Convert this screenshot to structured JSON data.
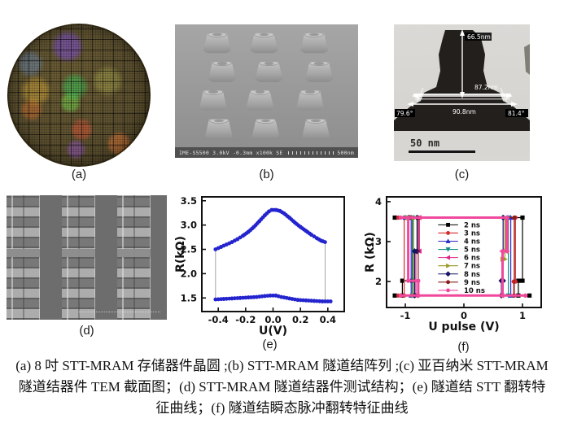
{
  "figure": {
    "panel_labels": {
      "a": "(a)",
      "b": "(b)",
      "c": "(c)",
      "d": "(d)",
      "e": "(e)",
      "f": "(f)"
    },
    "panel_b": {
      "status_text": "IME-S5500 3.0kV -0.3mm x100k SE",
      "scale_text": "500nm",
      "pillar_rows": 4,
      "pillar_cols": 3
    },
    "panel_c": {
      "height_label": "66.5nm",
      "width_label_top": "87.2nm",
      "width_label_bottom": "90.8nm",
      "angle_left": "79.6°",
      "angle_right": "81.4°",
      "scale_bar": "50 nm"
    }
  },
  "caption": {
    "lines": [
      "(a) 8 吋 STT-MRAM 存储器件晶圆 ;(b) STT-MRAM 隧道结阵列 ;(c) 亚百纳米 STT-MRAM",
      "隧道结器件 TEM 截面图；(d) STT-MRAM 隧道结器件测试结构；(e) 隧道结 STT 翻转特",
      "征曲线；(f) 隧道结瞬态脉冲翻转特征曲线"
    ]
  },
  "chart_data": [
    {
      "type": "scatter",
      "title": "",
      "xlabel": "U(V)",
      "ylabel": "R(kΩ)",
      "xlim": [
        -0.52,
        0.52
      ],
      "ylim": [
        1.22,
        3.58
      ],
      "xticks": [
        {
          "v": -0.4,
          "t": "-0.4"
        },
        {
          "v": -0.2,
          "t": "-0.2"
        },
        {
          "v": 0.0,
          "t": "0.0"
        },
        {
          "v": 0.2,
          "t": "0.2"
        },
        {
          "v": 0.4,
          "t": "0.4"
        }
      ],
      "yticks": [
        {
          "v": 1.5,
          "t": "1.5"
        },
        {
          "v": 2.0,
          "t": "2.0"
        },
        {
          "v": 2.5,
          "t": "2.5"
        },
        {
          "v": 3.0,
          "t": "3.0"
        },
        {
          "v": 3.5,
          "t": "3.5"
        }
      ],
      "dot_color": "#2424cf",
      "dot_radius": 2.4,
      "series": [
        {
          "name": "upper-branch",
          "points": [
            [
              -0.42,
              2.5
            ],
            [
              -0.38,
              2.55
            ],
            [
              -0.34,
              2.6
            ],
            [
              -0.3,
              2.65
            ],
            [
              -0.26,
              2.71
            ],
            [
              -0.22,
              2.78
            ],
            [
              -0.18,
              2.86
            ],
            [
              -0.14,
              2.96
            ],
            [
              -0.1,
              3.08
            ],
            [
              -0.06,
              3.2
            ],
            [
              -0.03,
              3.28
            ],
            [
              -0.01,
              3.31
            ],
            [
              0.02,
              3.31
            ],
            [
              0.05,
              3.29
            ],
            [
              0.08,
              3.24
            ],
            [
              0.12,
              3.15
            ],
            [
              0.16,
              3.05
            ],
            [
              0.2,
              2.96
            ],
            [
              0.24,
              2.88
            ],
            [
              0.28,
              2.8
            ],
            [
              0.32,
              2.73
            ],
            [
              0.35,
              2.68
            ],
            [
              0.38,
              2.65
            ]
          ]
        },
        {
          "name": "lower-branch",
          "points": [
            [
              -0.42,
              1.47
            ],
            [
              -0.36,
              1.48
            ],
            [
              -0.3,
              1.49
            ],
            [
              -0.24,
              1.5
            ],
            [
              -0.18,
              1.51
            ],
            [
              -0.12,
              1.52
            ],
            [
              -0.06,
              1.54
            ],
            [
              -0.02,
              1.55
            ],
            [
              0.02,
              1.55
            ],
            [
              0.06,
              1.52
            ],
            [
              0.12,
              1.49
            ],
            [
              0.18,
              1.46
            ],
            [
              0.24,
              1.45
            ],
            [
              0.3,
              1.44
            ],
            [
              0.36,
              1.43
            ],
            [
              0.42,
              1.43
            ]
          ]
        }
      ],
      "connectors": [
        [
          [
            -0.42,
            2.5
          ],
          [
            -0.42,
            1.47
          ]
        ],
        [
          [
            0.38,
            2.65
          ],
          [
            0.38,
            1.43
          ]
        ]
      ]
    },
    {
      "type": "line",
      "title": "",
      "xlabel": "U pulse (V)",
      "ylabel": "R (kΩ)",
      "xlim": [
        -1.32,
        1.32
      ],
      "ylim": [
        1.35,
        4.12
      ],
      "xticks": [
        {
          "v": -1,
          "t": "-1"
        },
        {
          "v": 0,
          "t": "0"
        },
        {
          "v": 1,
          "t": "1"
        }
      ],
      "yticks": [
        {
          "v": 2,
          "t": "2"
        },
        {
          "v": 3,
          "t": "3"
        },
        {
          "v": 4,
          "t": "4"
        }
      ],
      "r_high": 3.6,
      "r_low": 1.65,
      "legend": {
        "x_line_start": -0.44,
        "x_line_end": -0.1,
        "x_text": 0.0,
        "y_start": 3.42,
        "y_step": 0.205
      },
      "series": [
        {
          "name": "2 ns",
          "color": "#000000",
          "marker": "square",
          "lw": 1.2,
          "segments": [
            [
              [
                -1.18,
                3.6
              ],
              [
                1.0,
                3.6
              ],
              [
                1.0,
                2.02
              ],
              [
                0.93,
                2.02
              ],
              [
                0.93,
                1.65
              ]
            ],
            [
              [
                -1.18,
                1.65
              ],
              [
                1.12,
                1.65
              ]
            ],
            [
              [
                -1.05,
                1.65
              ],
              [
                -1.05,
                2.02
              ],
              [
                -0.88,
                2.02
              ],
              [
                -0.88,
                3.6
              ]
            ]
          ]
        },
        {
          "name": "3 ns",
          "color": "#d42a2a",
          "marker": "circle",
          "lw": 1.2,
          "segments": [
            [
              [
                -1.12,
                3.6
              ],
              [
                0.88,
                3.6
              ],
              [
                0.88,
                2.0
              ],
              [
                0.85,
                2.0
              ],
              [
                0.85,
                1.65
              ]
            ],
            [
              [
                -1.12,
                1.65
              ],
              [
                1.05,
                1.65
              ]
            ],
            [
              [
                -1.02,
                1.65
              ],
              [
                -1.02,
                3.6
              ]
            ]
          ]
        },
        {
          "name": "4 ns",
          "color": "#2929c8",
          "marker": "triangle-up",
          "lw": 1.2,
          "segments": [
            [
              [
                -1.0,
                3.6
              ],
              [
                0.8,
                3.6
              ],
              [
                0.8,
                1.65
              ]
            ],
            [
              [
                -0.9,
                1.65
              ],
              [
                -0.9,
                3.6
              ]
            ]
          ]
        },
        {
          "name": "5 ns",
          "color": "#0e8a8a",
          "marker": "triangle-down",
          "lw": 1.2,
          "segments": [
            [
              [
                -0.98,
                3.6
              ],
              [
                0.76,
                3.6
              ],
              [
                0.76,
                1.65
              ]
            ],
            [
              [
                -0.88,
                1.65
              ],
              [
                -0.88,
                3.6
              ]
            ]
          ]
        },
        {
          "name": "6 ns",
          "color": "#e0218a",
          "marker": "triangle-left",
          "lw": 1.2,
          "segments": [
            [
              [
                -0.95,
                3.6
              ],
              [
                0.72,
                3.6
              ],
              [
                0.72,
                2.76
              ],
              [
                0.65,
                2.76
              ],
              [
                0.65,
                1.65
              ]
            ],
            [
              [
                -0.82,
                1.65
              ],
              [
                -0.82,
                2.76
              ],
              [
                -0.76,
                2.76
              ],
              [
                -0.76,
                3.6
              ]
            ]
          ]
        },
        {
          "name": "7 ns",
          "color": "#9a9a28",
          "marker": "triangle-right",
          "lw": 1.2,
          "segments": [
            [
              [
                -0.96,
                3.6
              ],
              [
                0.7,
                3.6
              ],
              [
                0.7,
                2.56
              ],
              [
                0.66,
                2.56
              ],
              [
                0.66,
                1.65
              ]
            ],
            [
              [
                -0.86,
                1.65
              ],
              [
                -0.86,
                3.6
              ]
            ]
          ]
        },
        {
          "name": "8 ns",
          "color": "#141464",
          "marker": "diamond",
          "lw": 1.2,
          "segments": [
            [
              [
                -0.94,
                3.6
              ],
              [
                0.67,
                3.6
              ],
              [
                0.67,
                2.02
              ],
              [
                0.64,
                2.02
              ],
              [
                0.64,
                1.65
              ]
            ],
            [
              [
                -0.84,
                1.65
              ],
              [
                -0.84,
                2.76
              ],
              [
                -0.8,
                2.76
              ],
              [
                -0.8,
                3.6
              ]
            ]
          ]
        },
        {
          "name": "9 ns",
          "color": "#8c1a1a",
          "marker": "circle",
          "lw": 1.2,
          "segments": [
            [
              [
                -0.92,
                3.6
              ],
              [
                0.86,
                3.6
              ],
              [
                0.86,
                1.65
              ]
            ],
            [
              [
                -0.78,
                1.65
              ],
              [
                -0.78,
                3.6
              ]
            ]
          ]
        },
        {
          "name": "10 ns",
          "color": "#f0489c",
          "marker": "circle",
          "lw": 3,
          "segments": [
            [
              [
                -1.08,
                3.6
              ],
              [
                0.74,
                3.6
              ],
              [
                0.74,
                2.76
              ],
              [
                0.66,
                2.76
              ],
              [
                0.66,
                1.65
              ]
            ],
            [
              [
                -1.08,
                1.65
              ],
              [
                1.05,
                1.65
              ]
            ],
            [
              [
                -0.78,
                1.65
              ],
              [
                -0.78,
                2.02
              ],
              [
                -0.95,
                2.02
              ],
              [
                -0.95,
                3.6
              ]
            ]
          ]
        }
      ]
    }
  ]
}
